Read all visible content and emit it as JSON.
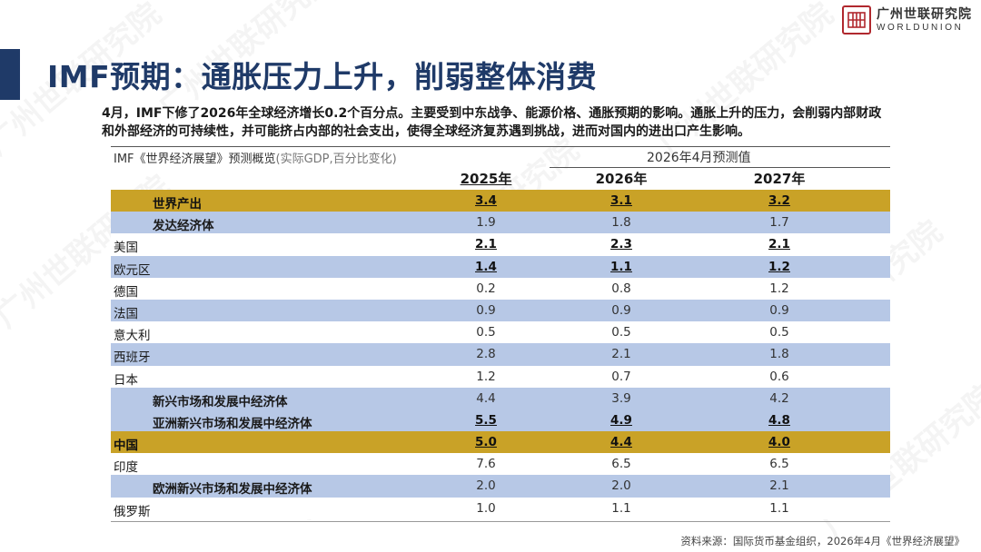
{
  "logo": {
    "cn": "广州世联研究院",
    "en": "WORLDUNION"
  },
  "title": "IMF预期：通胀压力上升，削弱整体消费",
  "intro": {
    "line1": "4月，IMF下修了2026年全球经济增长0.2个百分点。主要受到中东战争、能源价格、通胀预期的影响。通胀上升的压力，会削弱内部财政",
    "line2": "和外部经济的可持续性，并可能挤占内部的社会支出，使得全球经济复苏遇到挑战，进而对国内的进出口产生影响。"
  },
  "table": {
    "caption": "IMF《世界经济展望》预测概览",
    "caption_paren": "(实际GDP,百分比变化)",
    "forecast_header": "2026年4月预测值",
    "columns": [
      "2025年",
      "2026年",
      "2027年"
    ],
    "rows": [
      {
        "label": "世界产出",
        "values": [
          "3.4",
          "3.1",
          "3.2"
        ]
      },
      {
        "label": "发达经济体",
        "values": [
          "1.9",
          "1.8",
          "1.7"
        ]
      },
      {
        "label": "美国",
        "values": [
          "2.1",
          "2.3",
          "2.1"
        ]
      },
      {
        "label": "欧元区",
        "values": [
          "1.4",
          "1.1",
          "1.2"
        ]
      },
      {
        "label": "德国",
        "values": [
          "0.2",
          "0.8",
          "1.2"
        ]
      },
      {
        "label": "法国",
        "values": [
          "0.9",
          "0.9",
          "0.9"
        ]
      },
      {
        "label": "意大利",
        "values": [
          "0.5",
          "0.5",
          "0.5"
        ]
      },
      {
        "label": "西班牙",
        "values": [
          "2.8",
          "2.1",
          "1.8"
        ]
      },
      {
        "label": "日本",
        "values": [
          "1.2",
          "0.7",
          "0.6"
        ]
      },
      {
        "label": "新兴市场和发展中经济体",
        "values": [
          "4.4",
          "3.9",
          "4.2"
        ]
      },
      {
        "label": "亚洲新兴市场和发展中经济体",
        "values": [
          "5.5",
          "4.9",
          "4.8"
        ]
      },
      {
        "label": "中国",
        "values": [
          "5.0",
          "4.4",
          "4.0"
        ]
      },
      {
        "label": "印度",
        "values": [
          "7.6",
          "6.5",
          "6.5"
        ]
      },
      {
        "label": "欧洲新兴市场和发展中经济体",
        "values": [
          "2.0",
          "2.0",
          "2.1"
        ]
      },
      {
        "label": "俄罗斯",
        "values": [
          "1.0",
          "1.1",
          "1.1"
        ]
      }
    ]
  },
  "source": "资料来源：国际货币基金组织，2026年4月《世界经济展望》",
  "colors": {
    "title_navy": "#1f3a68",
    "gold_row": "#c9a227",
    "blue_row": "#b7c8e6",
    "logo_red": "#b0282e"
  }
}
